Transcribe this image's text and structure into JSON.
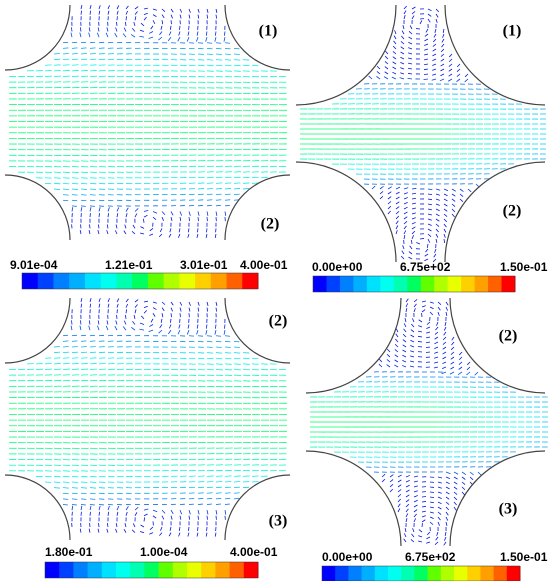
{
  "panels": [
    {
      "labels": [
        "(1)",
        "(2)"
      ],
      "colorbar": [
        "9.01e-04",
        "1.21e-01",
        "3.01e-01",
        "4.00e-01"
      ]
    },
    {
      "labels": [
        "(1)",
        "(2)"
      ],
      "colorbar": [
        "0.00e+00",
        "6.75e+02",
        "1.50e-01"
      ]
    },
    {
      "labels": [
        "(2)",
        "(3)"
      ],
      "colorbar": [
        "1.80e-01",
        "1.00e-04",
        "4.00e-01"
      ]
    },
    {
      "labels": [
        "(2)",
        "(3)"
      ],
      "colorbar": [
        "0.00e+00",
        "6.75e+02",
        "1.50e-01"
      ]
    }
  ]
}
